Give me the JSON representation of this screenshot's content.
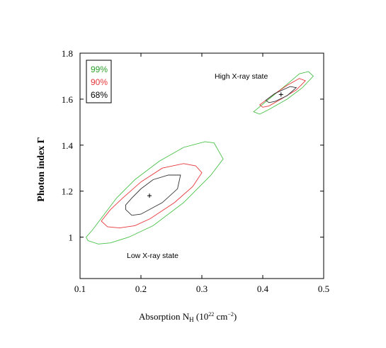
{
  "chart_data": {
    "type": "scatter",
    "subtype": "confidence-contours",
    "title": "",
    "xlabel": {
      "main": "Absorption N",
      "sub": "H",
      "units_pre": " (10",
      "units_exp1": "22",
      "units_mid": " cm",
      "units_exp2": "−2",
      "units_post": ")"
    },
    "ylabel": "Photon index Γ",
    "xlim": [
      0.1,
      0.5
    ],
    "ylim": [
      0.82,
      1.8
    ],
    "x_ticks": [
      0.1,
      0.2,
      0.3,
      0.4,
      0.5
    ],
    "x_tick_labels": [
      "0.1",
      "0.2",
      "0.3",
      "0.4",
      "0.5"
    ],
    "y_ticks": [
      1.0,
      1.2,
      1.4,
      1.6,
      1.8
    ],
    "y_tick_labels": [
      "1",
      "1.2",
      "1.4",
      "1.6",
      "1.8"
    ],
    "grid": false,
    "legend_position": "top-left",
    "legend": [
      {
        "label": "99%",
        "color": "#2ca02c"
      },
      {
        "label": "90%",
        "color": "#e8363a"
      },
      {
        "label": "68%",
        "color": "#000000"
      }
    ],
    "groups": [
      {
        "annotation": "Low X-ray state",
        "best_fit": {
          "x": 0.214,
          "y": 1.18
        },
        "contours": [
          {
            "level": "99%",
            "color": "#48c248",
            "points": [
              [
                0.11,
                1.0
              ],
              [
                0.12,
                1.03
              ],
              [
                0.14,
                1.1
              ],
              [
                0.16,
                1.17
              ],
              [
                0.19,
                1.25
              ],
              [
                0.23,
                1.33
              ],
              [
                0.27,
                1.39
              ],
              [
                0.305,
                1.415
              ],
              [
                0.32,
                1.41
              ],
              [
                0.335,
                1.34
              ],
              [
                0.315,
                1.27
              ],
              [
                0.27,
                1.15
              ],
              [
                0.22,
                1.05
              ],
              [
                0.18,
                1.0
              ],
              [
                0.15,
                0.975
              ],
              [
                0.13,
                0.97
              ],
              [
                0.113,
                0.985
              ]
            ]
          },
          {
            "level": "90%",
            "color": "#e8363a",
            "points": [
              [
                0.135,
                1.07
              ],
              [
                0.15,
                1.12
              ],
              [
                0.17,
                1.17
              ],
              [
                0.2,
                1.24
              ],
              [
                0.235,
                1.3
              ],
              [
                0.27,
                1.32
              ],
              [
                0.29,
                1.31
              ],
              [
                0.3,
                1.28
              ],
              [
                0.285,
                1.22
              ],
              [
                0.255,
                1.15
              ],
              [
                0.215,
                1.08
              ],
              [
                0.19,
                1.05
              ],
              [
                0.165,
                1.04
              ],
              [
                0.145,
                1.045
              ]
            ]
          },
          {
            "level": "68%",
            "color": "#333333",
            "points": [
              [
                0.175,
                1.14
              ],
              [
                0.185,
                1.17
              ],
              [
                0.2,
                1.21
              ],
              [
                0.22,
                1.25
              ],
              [
                0.245,
                1.27
              ],
              [
                0.265,
                1.27
              ],
              [
                0.26,
                1.21
              ],
              [
                0.235,
                1.15
              ],
              [
                0.2,
                1.1
              ],
              [
                0.185,
                1.095
              ],
              [
                0.175,
                1.12
              ]
            ]
          }
        ]
      },
      {
        "annotation": "High X-ray state",
        "best_fit": {
          "x": 0.43,
          "y": 1.62
        },
        "contours": [
          {
            "level": "99%",
            "color": "#48c248",
            "points": [
              [
                0.385,
                1.545
              ],
              [
                0.41,
                1.6
              ],
              [
                0.44,
                1.665
              ],
              [
                0.46,
                1.71
              ],
              [
                0.475,
                1.72
              ],
              [
                0.483,
                1.7
              ],
              [
                0.465,
                1.65
              ],
              [
                0.44,
                1.6
              ],
              [
                0.41,
                1.555
              ],
              [
                0.395,
                1.535
              ]
            ]
          },
          {
            "level": "90%",
            "color": "#e8363a",
            "points": [
              [
                0.395,
                1.575
              ],
              [
                0.415,
                1.615
              ],
              [
                0.44,
                1.66
              ],
              [
                0.46,
                1.69
              ],
              [
                0.47,
                1.68
              ],
              [
                0.455,
                1.64
              ],
              [
                0.43,
                1.6
              ],
              [
                0.41,
                1.57
              ],
              [
                0.4,
                1.565
              ]
            ]
          },
          {
            "level": "68%",
            "color": "#333333",
            "points": [
              [
                0.405,
                1.595
              ],
              [
                0.42,
                1.625
              ],
              [
                0.445,
                1.655
              ],
              [
                0.455,
                1.65
              ],
              [
                0.44,
                1.615
              ],
              [
                0.42,
                1.59
              ],
              [
                0.41,
                1.585
              ]
            ]
          }
        ]
      }
    ]
  }
}
